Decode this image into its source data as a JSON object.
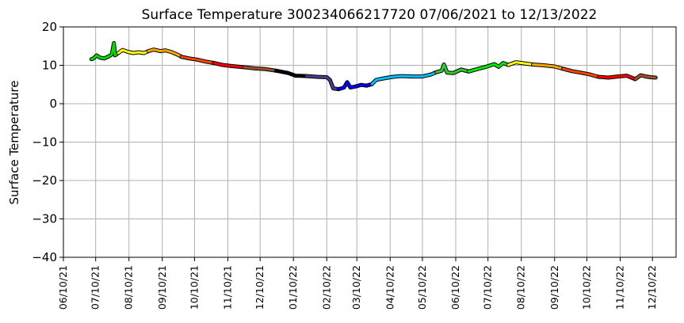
{
  "chart_data": {
    "type": "line",
    "title": "Surface Temperature 300234066217720  07/06/2021 to 12/13/2022",
    "xlabel": "",
    "ylabel": "Surface Temperature",
    "xlim": [
      "2021-06-10",
      "2023-01-01"
    ],
    "ylim": [
      -40,
      20
    ],
    "grid": true,
    "x_ticks": [
      "06/10/21",
      "07/10/21",
      "08/10/21",
      "09/10/21",
      "10/10/21",
      "11/10/21",
      "12/10/21",
      "01/10/22",
      "02/10/22",
      "03/10/22",
      "04/10/22",
      "05/10/22",
      "06/10/22",
      "07/10/22",
      "08/10/22",
      "09/10/22",
      "10/10/22",
      "11/10/22",
      "12/10/22"
    ],
    "y_ticks": [
      20,
      10,
      0,
      -10,
      -20,
      -30,
      -40
    ],
    "series": [
      {
        "color": "#00dd00",
        "points": [
          [
            "2021-07-06",
            11.6
          ],
          [
            "2021-07-08",
            11.8
          ],
          [
            "2021-07-11",
            12.6
          ],
          [
            "2021-07-14",
            12.0
          ],
          [
            "2021-07-18",
            11.8
          ],
          [
            "2021-07-22",
            12.3
          ],
          [
            "2021-07-25",
            12.8
          ],
          [
            "2021-07-27",
            15.8
          ],
          [
            "2021-07-28",
            12.6
          ],
          [
            "2021-07-31",
            13.2
          ]
        ]
      },
      {
        "color": "#ffff00",
        "points": [
          [
            "2021-07-31",
            13.2
          ],
          [
            "2021-08-04",
            14.0
          ],
          [
            "2021-08-09",
            13.5
          ],
          [
            "2021-08-14",
            13.2
          ],
          [
            "2021-08-19",
            13.4
          ],
          [
            "2021-08-24",
            13.2
          ],
          [
            "2021-08-28",
            13.7
          ]
        ]
      },
      {
        "color": "#ffa500",
        "points": [
          [
            "2021-08-28",
            13.7
          ],
          [
            "2021-09-02",
            14.1
          ],
          [
            "2021-09-08",
            13.7
          ],
          [
            "2021-09-13",
            13.9
          ],
          [
            "2021-09-18",
            13.5
          ],
          [
            "2021-09-24",
            12.8
          ],
          [
            "2021-09-28",
            12.2
          ]
        ]
      },
      {
        "color": "#ff4500",
        "points": [
          [
            "2021-09-28",
            12.2
          ],
          [
            "2021-10-05",
            11.8
          ],
          [
            "2021-10-12",
            11.5
          ],
          [
            "2021-10-20",
            11.0
          ],
          [
            "2021-10-28",
            10.6
          ]
        ]
      },
      {
        "color": "#ff0000",
        "points": [
          [
            "2021-10-28",
            10.6
          ],
          [
            "2021-11-05",
            10.1
          ],
          [
            "2021-11-14",
            9.8
          ],
          [
            "2021-11-25",
            9.5
          ]
        ]
      },
      {
        "color": "#a0522d",
        "points": [
          [
            "2021-11-25",
            9.5
          ],
          [
            "2021-12-05",
            9.2
          ],
          [
            "2021-12-15",
            9.0
          ],
          [
            "2021-12-25",
            8.6
          ]
        ]
      },
      {
        "color": "#000000",
        "points": [
          [
            "2021-12-25",
            8.6
          ],
          [
            "2022-01-05",
            8.0
          ],
          [
            "2022-01-12",
            7.3
          ],
          [
            "2022-01-22",
            7.2
          ]
        ]
      },
      {
        "color": "#483d8b",
        "points": [
          [
            "2022-01-22",
            7.2
          ],
          [
            "2022-02-02",
            7.0
          ],
          [
            "2022-02-10",
            6.9
          ],
          [
            "2022-02-13",
            6.2
          ],
          [
            "2022-02-16",
            4.0
          ],
          [
            "2022-02-21",
            3.8
          ]
        ]
      },
      {
        "color": "#0000ff",
        "points": [
          [
            "2022-02-21",
            3.8
          ],
          [
            "2022-02-26",
            4.2
          ],
          [
            "2022-03-01",
            5.6
          ],
          [
            "2022-03-04",
            4.2
          ],
          [
            "2022-03-09",
            4.5
          ],
          [
            "2022-03-14",
            4.9
          ],
          [
            "2022-03-19",
            4.7
          ],
          [
            "2022-03-24",
            5.1
          ]
        ]
      },
      {
        "color": "#00bfff",
        "points": [
          [
            "2022-03-24",
            5.1
          ],
          [
            "2022-03-28",
            6.2
          ],
          [
            "2022-04-04",
            6.6
          ],
          [
            "2022-04-12",
            7.0
          ],
          [
            "2022-04-20",
            7.2
          ],
          [
            "2022-04-30",
            7.1
          ],
          [
            "2022-05-10",
            7.1
          ],
          [
            "2022-05-18",
            7.6
          ],
          [
            "2022-05-23",
            8.2
          ]
        ]
      },
      {
        "color": "#32cd32",
        "points": [
          [
            "2022-05-23",
            8.2
          ],
          [
            "2022-05-28",
            8.6
          ],
          [
            "2022-05-30",
            10.2
          ],
          [
            "2022-06-02",
            8.1
          ],
          [
            "2022-06-08",
            8.0
          ],
          [
            "2022-06-15",
            8.9
          ],
          [
            "2022-06-22",
            8.4
          ]
        ]
      },
      {
        "color": "#00ee00",
        "points": [
          [
            "2022-06-22",
            8.4
          ],
          [
            "2022-06-30",
            9.0
          ],
          [
            "2022-07-08",
            9.6
          ],
          [
            "2022-07-16",
            10.3
          ],
          [
            "2022-07-20",
            9.6
          ],
          [
            "2022-07-24",
            10.6
          ],
          [
            "2022-07-29",
            10.1
          ]
        ]
      },
      {
        "color": "#ffff00",
        "points": [
          [
            "2022-07-29",
            10.1
          ],
          [
            "2022-08-05",
            10.8
          ],
          [
            "2022-08-13",
            10.5
          ],
          [
            "2022-08-21",
            10.2
          ]
        ]
      },
      {
        "color": "#ffa500",
        "points": [
          [
            "2022-08-21",
            10.2
          ],
          [
            "2022-08-31",
            10.0
          ],
          [
            "2022-09-10",
            9.7
          ],
          [
            "2022-09-18",
            9.1
          ]
        ]
      },
      {
        "color": "#ff4500",
        "points": [
          [
            "2022-09-18",
            9.1
          ],
          [
            "2022-09-26",
            8.5
          ],
          [
            "2022-10-04",
            8.1
          ],
          [
            "2022-10-13",
            7.6
          ],
          [
            "2022-10-21",
            7.0
          ]
        ]
      },
      {
        "color": "#ff0000",
        "points": [
          [
            "2022-10-21",
            7.0
          ],
          [
            "2022-10-30",
            6.8
          ],
          [
            "2022-11-08",
            7.1
          ],
          [
            "2022-11-16",
            7.3
          ],
          [
            "2022-11-24",
            6.4
          ]
        ]
      },
      {
        "color": "#a0522d",
        "points": [
          [
            "2022-11-24",
            6.4
          ],
          [
            "2022-11-29",
            7.4
          ],
          [
            "2022-12-04",
            7.1
          ],
          [
            "2022-12-08",
            6.9
          ],
          [
            "2022-12-13",
            6.8
          ]
        ]
      }
    ]
  }
}
